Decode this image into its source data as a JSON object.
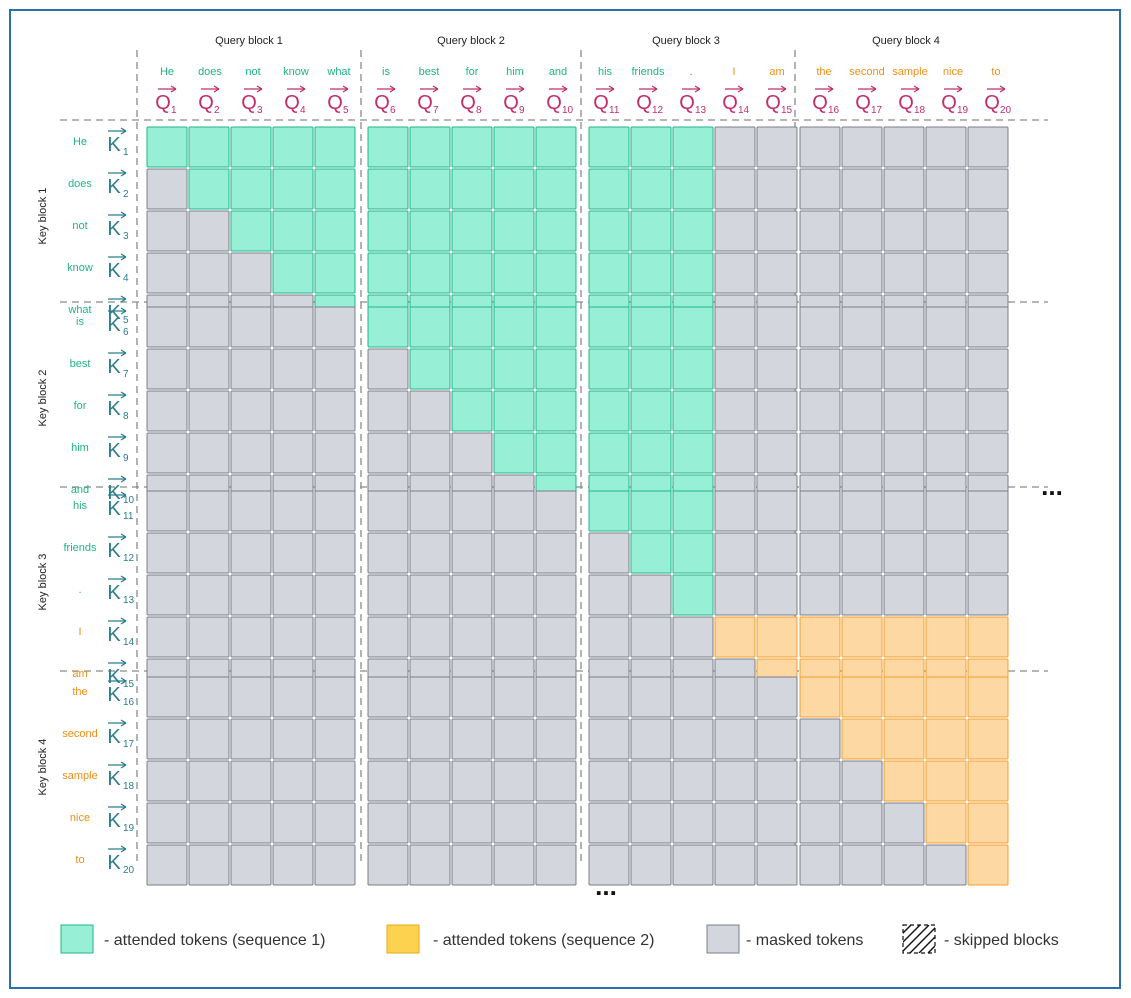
{
  "query_blocks": [
    {
      "label": "Query block 1"
    },
    {
      "label": "Query block 2"
    },
    {
      "label": "Query block 3"
    },
    {
      "label": "Query block 4"
    }
  ],
  "key_blocks": [
    {
      "label": "Key block 1"
    },
    {
      "label": "Key block 2"
    },
    {
      "label": "Key block 3"
    },
    {
      "label": "Key block 4"
    }
  ],
  "tokens": [
    {
      "word": "He",
      "seq": 1
    },
    {
      "word": "does",
      "seq": 1
    },
    {
      "word": "not",
      "seq": 1
    },
    {
      "word": "know",
      "seq": 1
    },
    {
      "word": "what",
      "seq": 1
    },
    {
      "word": "is",
      "seq": 1
    },
    {
      "word": "best",
      "seq": 1
    },
    {
      "word": "for",
      "seq": 1
    },
    {
      "word": "him",
      "seq": 1
    },
    {
      "word": "and",
      "seq": 1
    },
    {
      "word": "his",
      "seq": 1
    },
    {
      "word": "friends",
      "seq": 1
    },
    {
      "word": ".",
      "seq": 1
    },
    {
      "word": "I",
      "seq": 2
    },
    {
      "word": "am",
      "seq": 2
    },
    {
      "word": "the",
      "seq": 2
    },
    {
      "word": "second",
      "seq": 2
    },
    {
      "word": "sample",
      "seq": 2
    },
    {
      "word": "nice",
      "seq": 2
    },
    {
      "word": "to",
      "seq": 2
    }
  ],
  "query_symbol": "Q",
  "key_symbol": "K",
  "arrow_glyph": "→",
  "indices": [
    "1",
    "2",
    "3",
    "4",
    "5",
    "6",
    "7",
    "8",
    "9",
    "10",
    "11",
    "12",
    "13",
    "14",
    "15",
    "16",
    "17",
    "18",
    "19",
    "20"
  ],
  "colors": {
    "seq1_fill": "#97f0d6",
    "seq1_stroke": "#22b58a",
    "seq2_fill": "#fdd8a3",
    "seq2_stroke": "#f0a032",
    "masked_fill": "#d3d6dc",
    "masked_stroke": "#7b7f88",
    "seq1_text": "#1fb386",
    "seq2_text": "#ef8f16",
    "query_symbol": "#c22d6e",
    "key_symbol": "#2a7d8f",
    "legend_seq2_fill": "#fdd24f",
    "legend_seq2_stroke": "#e6a91c"
  },
  "ellipsis": "...",
  "legend": [
    {
      "kind": "seq1",
      "label": "- attended tokens (sequence 1)"
    },
    {
      "kind": "seq2",
      "label": "- attended tokens (sequence 2)"
    },
    {
      "kind": "masked",
      "label": "- masked tokens"
    },
    {
      "kind": "skipped",
      "label": "- skipped blocks"
    }
  ]
}
